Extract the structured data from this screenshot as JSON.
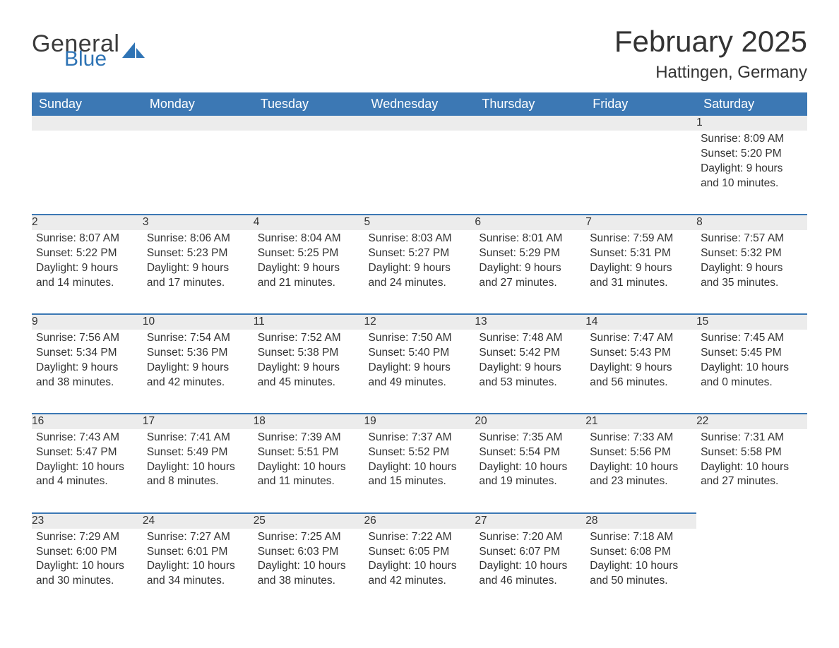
{
  "logo": {
    "general": "General",
    "blue": "Blue"
  },
  "title": "February 2025",
  "location": "Hattingen, Germany",
  "colors": {
    "header_bg": "#3c78b4",
    "header_text": "#ffffff",
    "daynum_bg": "#ececec",
    "daynum_border": "#3c78b4",
    "text": "#333333",
    "page_bg": "#ffffff",
    "logo_blue": "#2f74b5"
  },
  "weekday_labels": [
    "Sunday",
    "Monday",
    "Tuesday",
    "Wednesday",
    "Thursday",
    "Friday",
    "Saturday"
  ],
  "weeks": [
    [
      null,
      null,
      null,
      null,
      null,
      null,
      {
        "day": "1",
        "sunrise": "Sunrise: 8:09 AM",
        "sunset": "Sunset: 5:20 PM",
        "daylight": "Daylight: 9 hours and 10 minutes."
      }
    ],
    [
      {
        "day": "2",
        "sunrise": "Sunrise: 8:07 AM",
        "sunset": "Sunset: 5:22 PM",
        "daylight": "Daylight: 9 hours and 14 minutes."
      },
      {
        "day": "3",
        "sunrise": "Sunrise: 8:06 AM",
        "sunset": "Sunset: 5:23 PM",
        "daylight": "Daylight: 9 hours and 17 minutes."
      },
      {
        "day": "4",
        "sunrise": "Sunrise: 8:04 AM",
        "sunset": "Sunset: 5:25 PM",
        "daylight": "Daylight: 9 hours and 21 minutes."
      },
      {
        "day": "5",
        "sunrise": "Sunrise: 8:03 AM",
        "sunset": "Sunset: 5:27 PM",
        "daylight": "Daylight: 9 hours and 24 minutes."
      },
      {
        "day": "6",
        "sunrise": "Sunrise: 8:01 AM",
        "sunset": "Sunset: 5:29 PM",
        "daylight": "Daylight: 9 hours and 27 minutes."
      },
      {
        "day": "7",
        "sunrise": "Sunrise: 7:59 AM",
        "sunset": "Sunset: 5:31 PM",
        "daylight": "Daylight: 9 hours and 31 minutes."
      },
      {
        "day": "8",
        "sunrise": "Sunrise: 7:57 AM",
        "sunset": "Sunset: 5:32 PM",
        "daylight": "Daylight: 9 hours and 35 minutes."
      }
    ],
    [
      {
        "day": "9",
        "sunrise": "Sunrise: 7:56 AM",
        "sunset": "Sunset: 5:34 PM",
        "daylight": "Daylight: 9 hours and 38 minutes."
      },
      {
        "day": "10",
        "sunrise": "Sunrise: 7:54 AM",
        "sunset": "Sunset: 5:36 PM",
        "daylight": "Daylight: 9 hours and 42 minutes."
      },
      {
        "day": "11",
        "sunrise": "Sunrise: 7:52 AM",
        "sunset": "Sunset: 5:38 PM",
        "daylight": "Daylight: 9 hours and 45 minutes."
      },
      {
        "day": "12",
        "sunrise": "Sunrise: 7:50 AM",
        "sunset": "Sunset: 5:40 PM",
        "daylight": "Daylight: 9 hours and 49 minutes."
      },
      {
        "day": "13",
        "sunrise": "Sunrise: 7:48 AM",
        "sunset": "Sunset: 5:42 PM",
        "daylight": "Daylight: 9 hours and 53 minutes."
      },
      {
        "day": "14",
        "sunrise": "Sunrise: 7:47 AM",
        "sunset": "Sunset: 5:43 PM",
        "daylight": "Daylight: 9 hours and 56 minutes."
      },
      {
        "day": "15",
        "sunrise": "Sunrise: 7:45 AM",
        "sunset": "Sunset: 5:45 PM",
        "daylight": "Daylight: 10 hours and 0 minutes."
      }
    ],
    [
      {
        "day": "16",
        "sunrise": "Sunrise: 7:43 AM",
        "sunset": "Sunset: 5:47 PM",
        "daylight": "Daylight: 10 hours and 4 minutes."
      },
      {
        "day": "17",
        "sunrise": "Sunrise: 7:41 AM",
        "sunset": "Sunset: 5:49 PM",
        "daylight": "Daylight: 10 hours and 8 minutes."
      },
      {
        "day": "18",
        "sunrise": "Sunrise: 7:39 AM",
        "sunset": "Sunset: 5:51 PM",
        "daylight": "Daylight: 10 hours and 11 minutes."
      },
      {
        "day": "19",
        "sunrise": "Sunrise: 7:37 AM",
        "sunset": "Sunset: 5:52 PM",
        "daylight": "Daylight: 10 hours and 15 minutes."
      },
      {
        "day": "20",
        "sunrise": "Sunrise: 7:35 AM",
        "sunset": "Sunset: 5:54 PM",
        "daylight": "Daylight: 10 hours and 19 minutes."
      },
      {
        "day": "21",
        "sunrise": "Sunrise: 7:33 AM",
        "sunset": "Sunset: 5:56 PM",
        "daylight": "Daylight: 10 hours and 23 minutes."
      },
      {
        "day": "22",
        "sunrise": "Sunrise: 7:31 AM",
        "sunset": "Sunset: 5:58 PM",
        "daylight": "Daylight: 10 hours and 27 minutes."
      }
    ],
    [
      {
        "day": "23",
        "sunrise": "Sunrise: 7:29 AM",
        "sunset": "Sunset: 6:00 PM",
        "daylight": "Daylight: 10 hours and 30 minutes."
      },
      {
        "day": "24",
        "sunrise": "Sunrise: 7:27 AM",
        "sunset": "Sunset: 6:01 PM",
        "daylight": "Daylight: 10 hours and 34 minutes."
      },
      {
        "day": "25",
        "sunrise": "Sunrise: 7:25 AM",
        "sunset": "Sunset: 6:03 PM",
        "daylight": "Daylight: 10 hours and 38 minutes."
      },
      {
        "day": "26",
        "sunrise": "Sunrise: 7:22 AM",
        "sunset": "Sunset: 6:05 PM",
        "daylight": "Daylight: 10 hours and 42 minutes."
      },
      {
        "day": "27",
        "sunrise": "Sunrise: 7:20 AM",
        "sunset": "Sunset: 6:07 PM",
        "daylight": "Daylight: 10 hours and 46 minutes."
      },
      {
        "day": "28",
        "sunrise": "Sunrise: 7:18 AM",
        "sunset": "Sunset: 6:08 PM",
        "daylight": "Daylight: 10 hours and 50 minutes."
      },
      null
    ]
  ]
}
